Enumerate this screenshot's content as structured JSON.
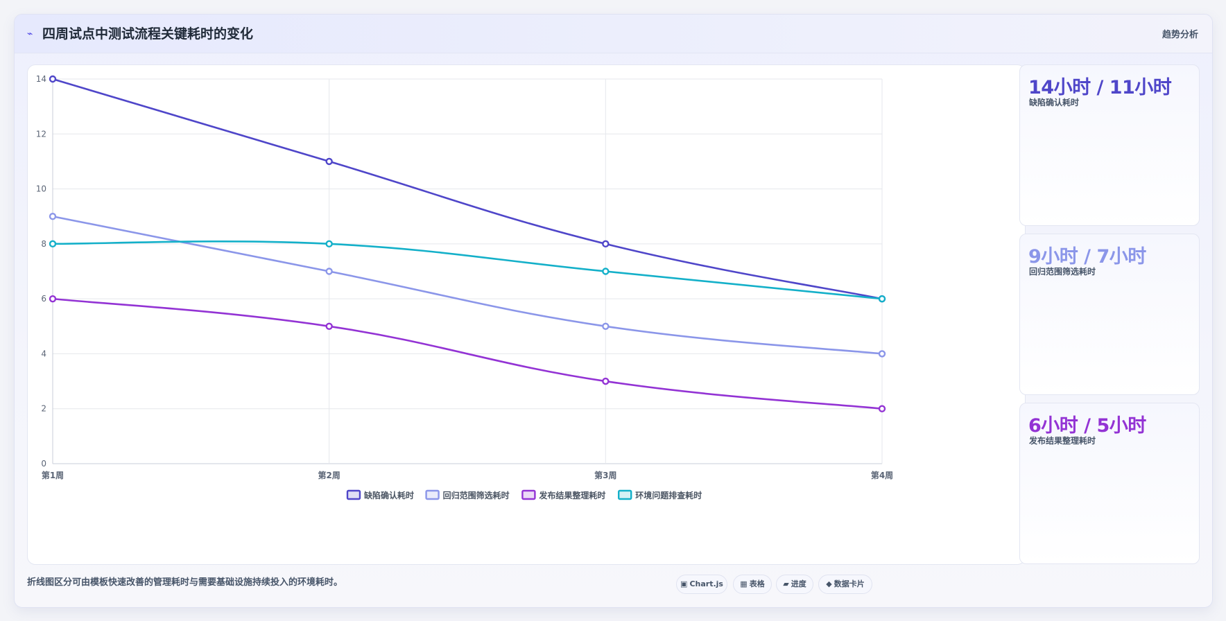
{
  "header": {
    "title": "四周试点中测试流程关键耗时的变化",
    "right_label": "趋势分析",
    "icon": "bolt-icon"
  },
  "chart_data": {
    "type": "line",
    "categories": [
      "第1周",
      "第2周",
      "第3周",
      "第4周"
    ],
    "ylim": [
      0,
      14
    ],
    "yticks": [
      0,
      2,
      4,
      6,
      8,
      10,
      12,
      14
    ],
    "grid": true,
    "legend_position": "bottom",
    "series": [
      {
        "name": "缺陷确认耗时",
        "color": "#4f46c9",
        "values": [
          14,
          11,
          8,
          6
        ]
      },
      {
        "name": "回归范围筛选耗时",
        "color": "#8b96e9",
        "values": [
          9,
          7,
          5,
          4
        ]
      },
      {
        "name": "发布结果整理耗时",
        "color": "#9333d4",
        "values": [
          6,
          5,
          3,
          2
        ]
      },
      {
        "name": "环境问题排查耗时",
        "color": "#14b0c9",
        "values": [
          8,
          8,
          7,
          6
        ]
      }
    ]
  },
  "stats": [
    {
      "value": "14小时 / 11小时",
      "label": "缺陷确认耗时",
      "color": "#4f46c9"
    },
    {
      "value": "9小时 / 7小时",
      "label": "回归范围筛选耗时",
      "color": "#8b96e9"
    },
    {
      "value": "6小时 / 5小时",
      "label": "发布结果整理耗时",
      "color": "#9333d4"
    }
  ],
  "footer": {
    "note": "折线图区分可由模板快速改善的管理耗时与需要基础设施持续投入的环境耗时。",
    "chips": [
      {
        "glyph": "▣",
        "label": "Chart.js",
        "icon": "chart-icon"
      },
      {
        "glyph": "▦",
        "label": "表格",
        "icon": "table-icon"
      },
      {
        "glyph": "▰",
        "label": "进度",
        "icon": "progress-icon"
      },
      {
        "glyph": "◆",
        "label": "数据卡片",
        "icon": "card-icon"
      }
    ]
  }
}
